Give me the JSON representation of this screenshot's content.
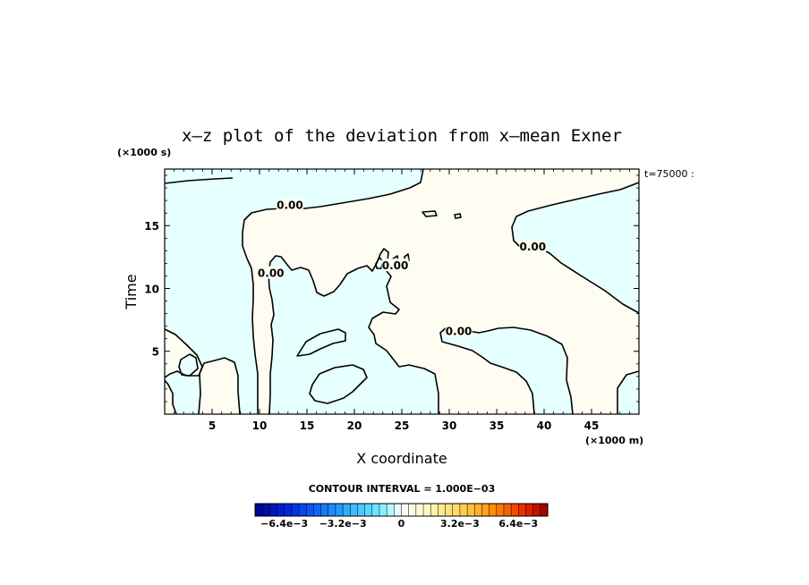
{
  "chart_data": {
    "type": "contour",
    "title": "x–z plot of the deviation from x–mean Exner",
    "xlabel": "X coordinate",
    "ylabel": "Time",
    "x_unit": "(×1000 m)",
    "y_unit": "(×1000 s)",
    "time_label": "t=75000 :",
    "xlim": [
      0,
      50
    ],
    "ylim": [
      0,
      19.5
    ],
    "xticks": [
      5,
      10,
      15,
      20,
      25,
      30,
      35,
      40,
      45
    ],
    "yticks": [
      5,
      10,
      15
    ],
    "contour_interval_text": "CONTOUR INTERVAL = 1.000E−03",
    "contour_levels": [
      0.0
    ],
    "contour_labels": [
      {
        "text": "0.00",
        "x": 13.2,
        "y": 16.6
      },
      {
        "text": "0.00",
        "x": 11.2,
        "y": 11.2
      },
      {
        "text": "0.00",
        "x": 24.3,
        "y": 11.8
      },
      {
        "text": "0.00",
        "x": 38.8,
        "y": 13.3
      },
      {
        "text": "0.00",
        "x": 31.0,
        "y": 6.6
      }
    ],
    "colorbar": {
      "min": -0.008,
      "max": 0.008,
      "ticks": [
        {
          "label": "−6.4e−3",
          "value": -0.0064
        },
        {
          "label": "−3.2e−3",
          "value": -0.0032
        },
        {
          "label": "0",
          "value": 0
        },
        {
          "label": "3.2e−3",
          "value": 0.0032
        },
        {
          "label": "6.4e−3",
          "value": 0.0064
        }
      ]
    },
    "colors": {
      "negative_fill": "#e6ffff",
      "positive_fill": "#fffdf1",
      "contour": "#000000"
    }
  }
}
